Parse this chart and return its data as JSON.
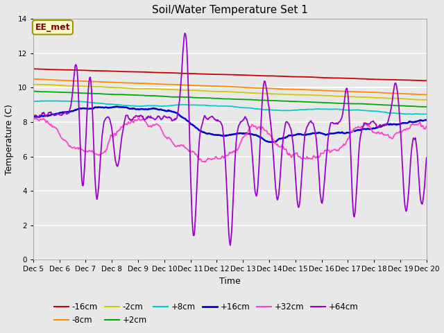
{
  "title": "Soil/Water Temperature Set 1",
  "xlabel": "Time",
  "ylabel": "Temperature (C)",
  "ylim": [
    0,
    14
  ],
  "yticks": [
    0,
    2,
    4,
    6,
    8,
    10,
    12,
    14
  ],
  "xlim": [
    0,
    15
  ],
  "annotation_text": "EE_met",
  "annotation_color": "#8B0000",
  "annotation_bg": "#FFFFCC",
  "annotation_border": "#999900",
  "bg_color": "#E8E8E8",
  "neg16_color": "#CC0000",
  "neg8_color": "#FF8C00",
  "neg2_color": "#CCCC00",
  "pos2_color": "#00AA00",
  "pos8_color": "#00CCCC",
  "pos16_color": "#0000CC",
  "pos32_color": "#FF44CC",
  "pos64_color": "#9900CC",
  "xtick_labels": [
    "Dec 5",
    "Dec 6",
    "Dec 7",
    "Dec 8",
    "Dec 9",
    "Dec 10",
    "Dec 11",
    "Dec 12",
    "Dec 13",
    "Dec 14",
    "Dec 15",
    "Dec 16",
    "Dec 17",
    "Dec 18",
    "Dec 19",
    "Dec 20"
  ],
  "xtick_positions": [
    0,
    1,
    2,
    3,
    4,
    5,
    6,
    7,
    8,
    9,
    10,
    11,
    12,
    13,
    14,
    15
  ]
}
